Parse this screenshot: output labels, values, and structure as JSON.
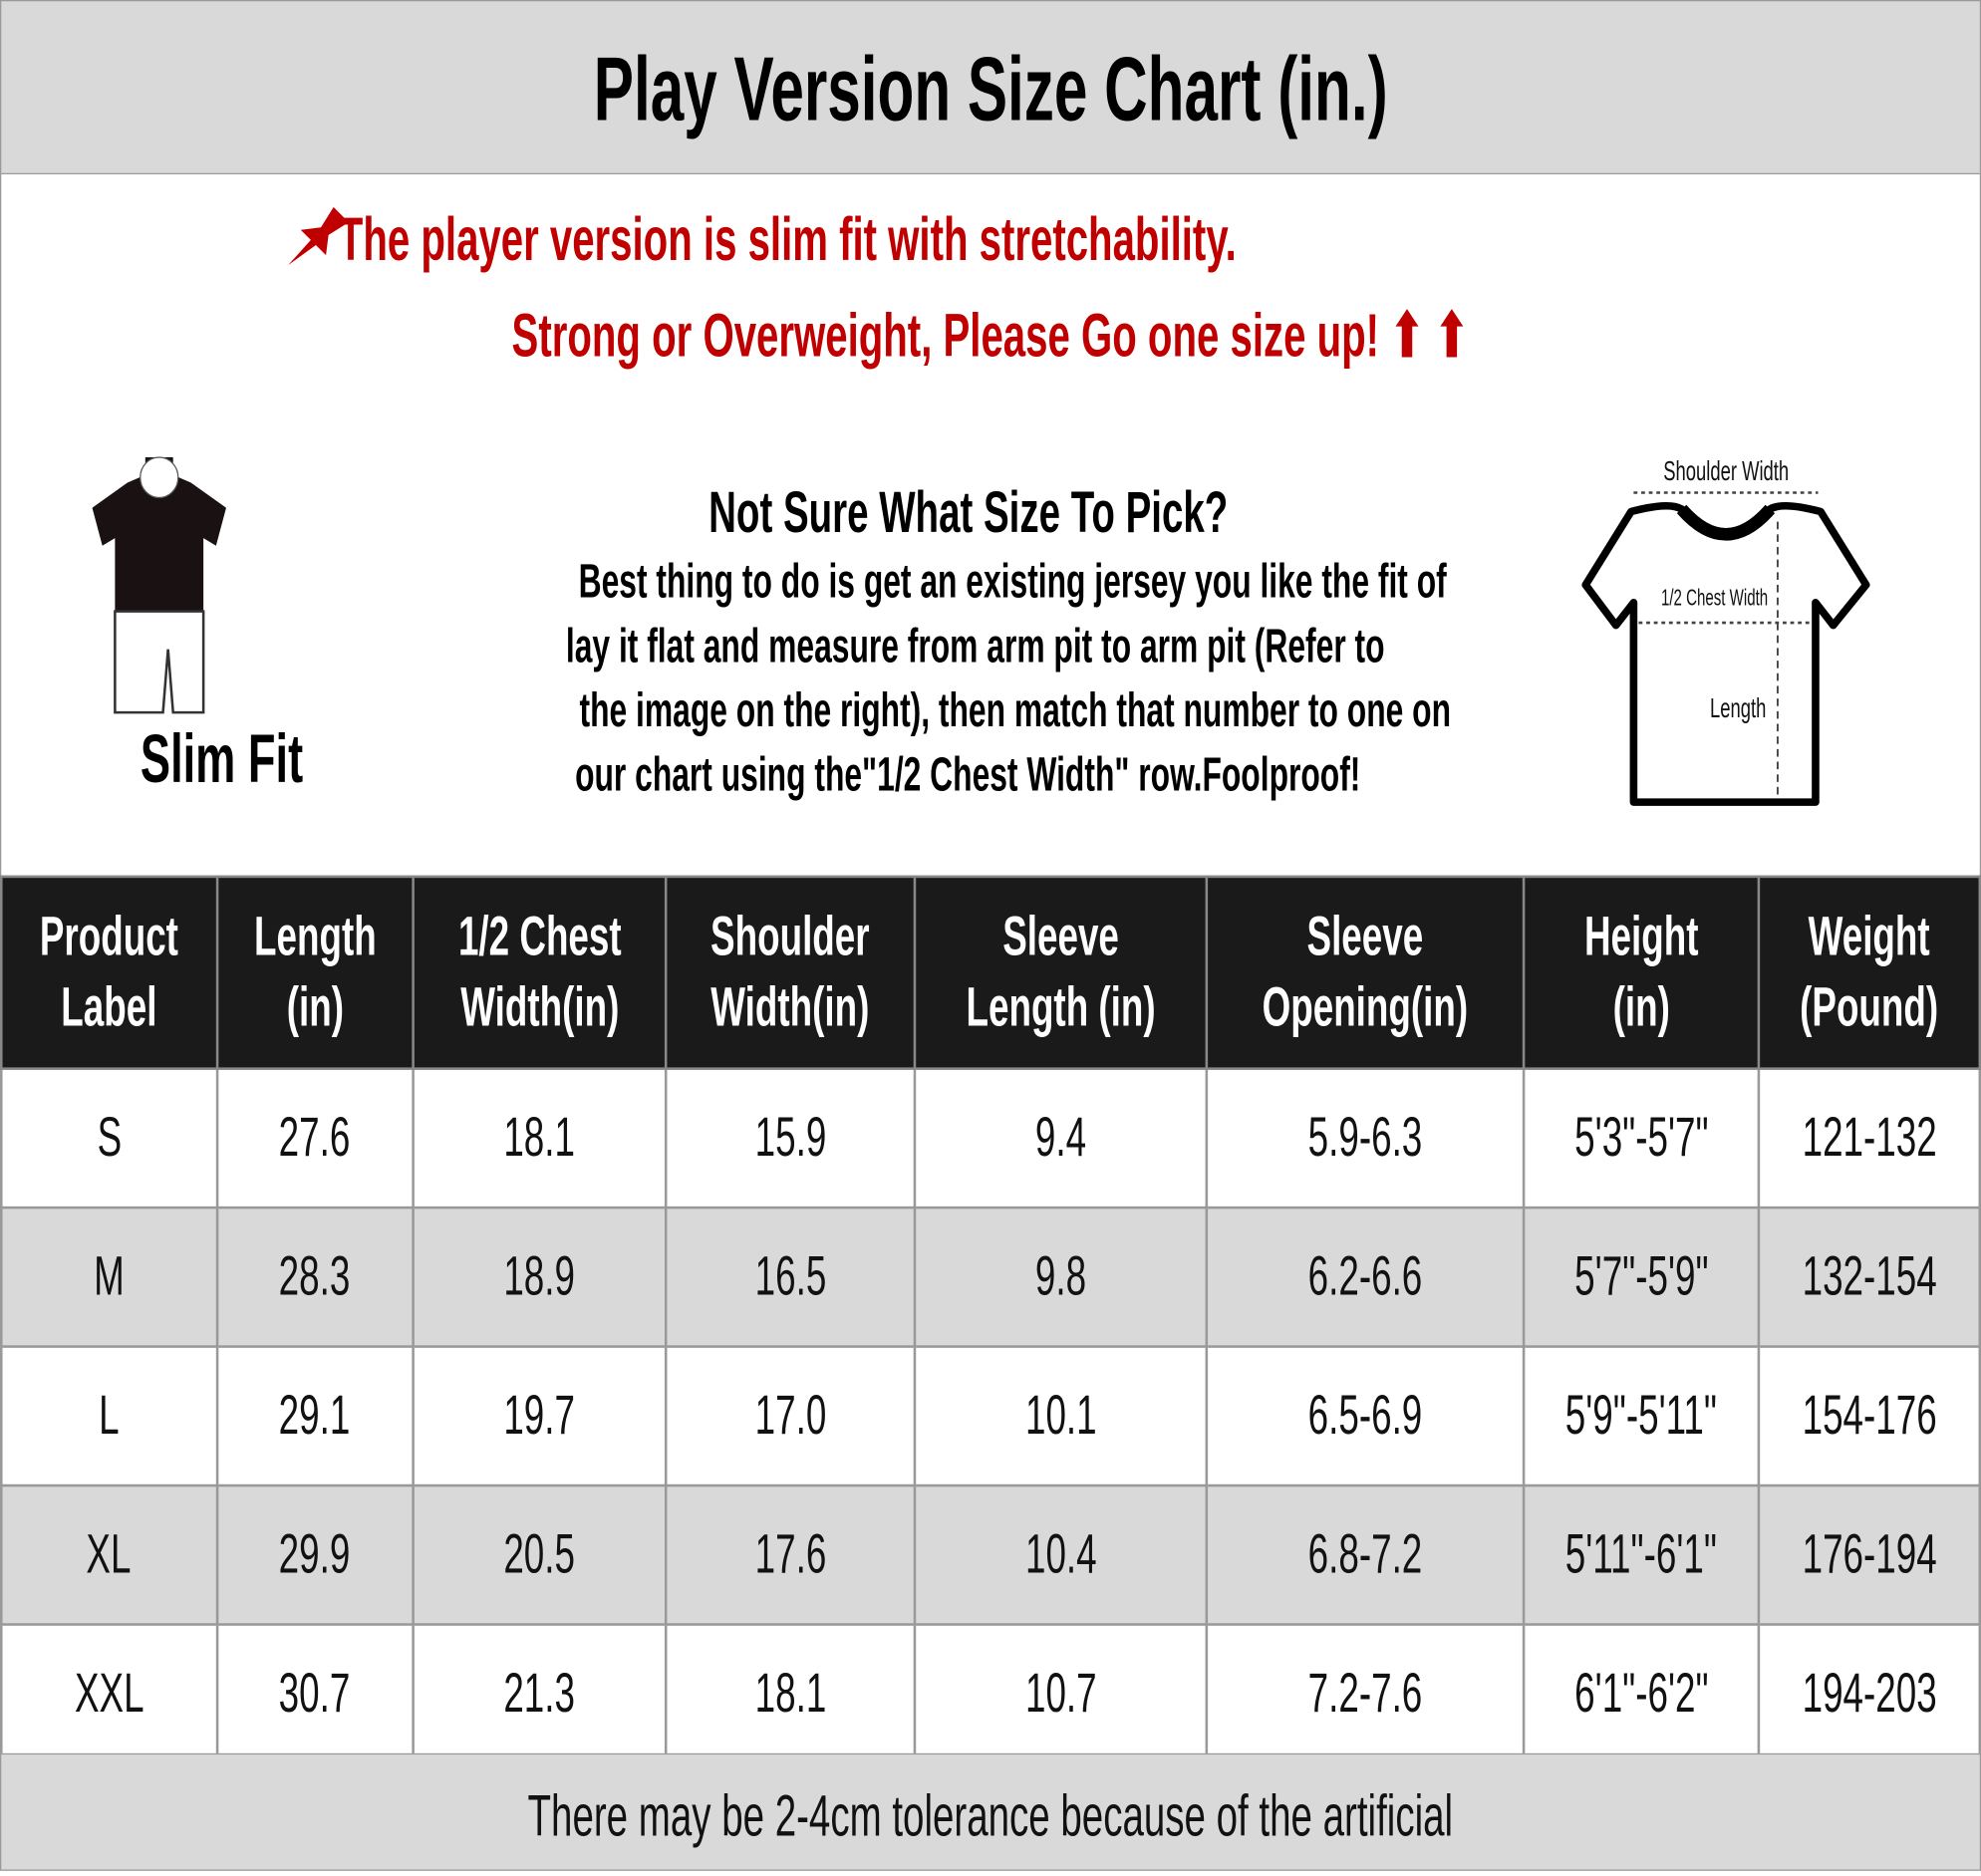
{
  "title": "Play Version Size Chart (in.)",
  "notice": {
    "line1": "The player version is slim fit with stretchability.",
    "line2": "Strong or Overweight, Please Go one size up! ⬆ ⬆",
    "icon": "pushpin-icon",
    "color": "#c00000"
  },
  "fit": {
    "label": "Slim Fit"
  },
  "guide": {
    "question": "Not Sure What Size To Pick?",
    "lines": [
      "Best thing to do is get an existing jersey you like the fit of",
      "lay it flat and measure from arm pit to arm pit (Refer to",
      "the image on the right), then match that number to one on",
      "our chart using the\"1/2 Chest Width\" row.Foolproof!"
    ]
  },
  "diagram": {
    "shoulder": "Shoulder Width",
    "chest": "1/2 Chest Width",
    "length": "Length"
  },
  "table": {
    "headers": [
      [
        "Product",
        "Label"
      ],
      [
        "Length",
        "(in)"
      ],
      [
        "1/2 Chest",
        "Width(in)"
      ],
      [
        "Shoulder",
        "Width(in)"
      ],
      [
        "Sleeve",
        "Length (in)"
      ],
      [
        "Sleeve",
        "Opening(in)"
      ],
      [
        "Height",
        "(in)"
      ],
      [
        "Weight",
        "(Pound)"
      ]
    ],
    "rows": [
      [
        "S",
        "27.6",
        "18.1",
        "15.9",
        "9.4",
        "5.9-6.3",
        "5'3\"-5'7\"",
        "121-132"
      ],
      [
        "M",
        "28.3",
        "18.9",
        "16.5",
        "9.8",
        "6.2-6.6",
        "5'7\"-5'9\"",
        "132-154"
      ],
      [
        "L",
        "29.1",
        "19.7",
        "17.0",
        "10.1",
        "6.5-6.9",
        "5'9\"-5'11\"",
        "154-176"
      ],
      [
        "XL",
        "29.9",
        "20.5",
        "17.6",
        "10.4",
        "6.8-7.2",
        "5'11\"-6'1\"",
        "176-194"
      ],
      [
        "XXL",
        "30.7",
        "21.3",
        "18.1",
        "10.7",
        "7.2-7.6",
        "6'1\"-6'2\"",
        "194-203"
      ]
    ]
  },
  "footer": "There may be 2-4cm tolerance because of the artificial"
}
